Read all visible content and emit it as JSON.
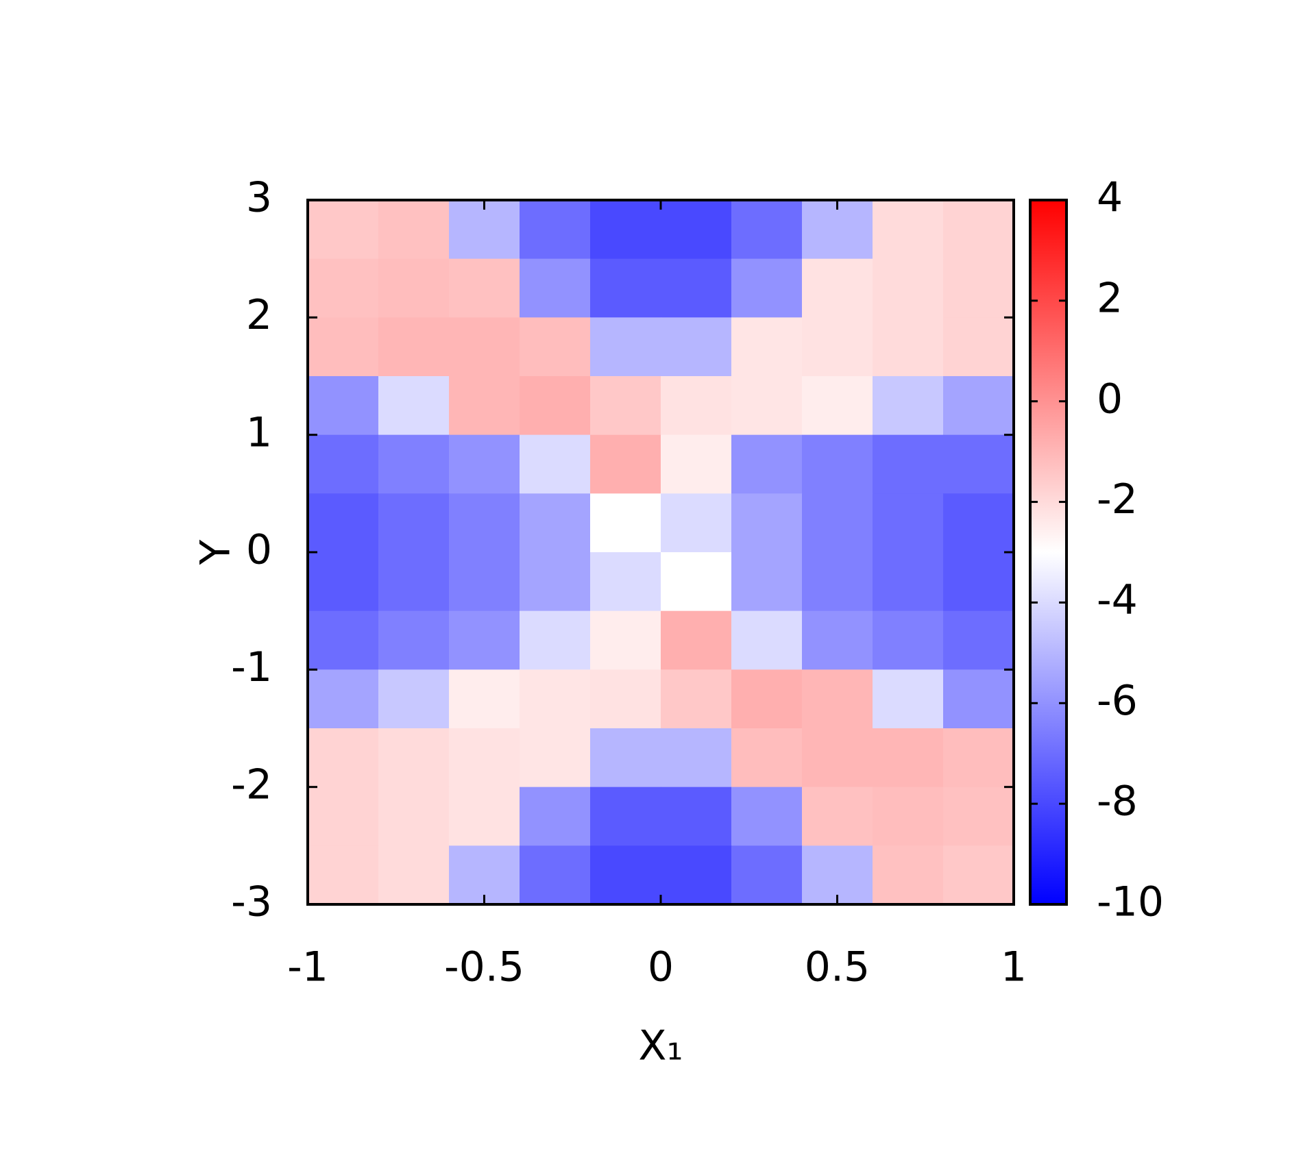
{
  "chart_data": {
    "type": "heatmap",
    "xlabel": "X₁",
    "ylabel": "Y",
    "x": [
      -0.9,
      -0.7,
      -0.5,
      -0.3,
      -0.1,
      0.1,
      0.3,
      0.5,
      0.7,
      0.9
    ],
    "y": [
      2.75,
      2.25,
      1.75,
      1.25,
      0.75,
      0.25,
      -0.25,
      -0.75,
      -1.25,
      -1.75,
      -2.25,
      -2.75
    ],
    "z": [
      [
        -1.5,
        -1.3,
        -5,
        -7,
        -8,
        -8,
        -7,
        -5,
        -2,
        -1.8
      ],
      [
        -1.3,
        -1.2,
        -1.3,
        -6,
        -7.5,
        -7.5,
        -6,
        -2.2,
        -2,
        -1.8
      ],
      [
        -1.2,
        -1,
        -1,
        -1.2,
        -5,
        -5,
        -2.3,
        -2.2,
        -2,
        -1.8
      ],
      [
        -6,
        -4,
        -1,
        -0.8,
        -1.5,
        -2.2,
        -2.3,
        -2.5,
        -4.5,
        -5.5
      ],
      [
        -7,
        -6.5,
        -6,
        -4,
        -0.8,
        -2.5,
        -6,
        -6.5,
        -7,
        -7
      ],
      [
        -7.5,
        -7,
        -6.5,
        -5.5,
        -3,
        -4,
        -5.5,
        -6.5,
        -7,
        -7.5
      ],
      [
        -7.5,
        -7,
        -6.5,
        -5.5,
        -4,
        -3,
        -5.5,
        -6.5,
        -7,
        -7.5
      ],
      [
        -7,
        -6.5,
        -6,
        -4,
        -2.5,
        -0.8,
        -4,
        -6,
        -6.5,
        -7
      ],
      [
        -5.5,
        -4.5,
        -2.5,
        -2.3,
        -2.2,
        -1.5,
        -0.8,
        -1,
        -4,
        -6
      ],
      [
        -1.8,
        -2,
        -2.2,
        -2.3,
        -5,
        -5,
        -1.2,
        -1,
        -1,
        -1.2
      ],
      [
        -1.8,
        -2,
        -2.2,
        -6,
        -7.5,
        -7.5,
        -6,
        -1.3,
        -1.2,
        -1.3
      ],
      [
        -1.8,
        -2,
        -5,
        -7,
        -8,
        -8,
        -7,
        -5,
        -1.3,
        -1.5
      ]
    ],
    "xlim": [
      -1,
      1
    ],
    "xticks": [
      -1,
      -0.5,
      0,
      0.5,
      1
    ],
    "ylim": [
      -3,
      3
    ],
    "yticks": [
      -3,
      -2,
      -1,
      0,
      1,
      2,
      3
    ],
    "zlim": [
      -10,
      4
    ],
    "zticks": [
      -10,
      -8,
      -6,
      -4,
      -2,
      0,
      2,
      4
    ],
    "colormap": [
      "#0000ff",
      "#ffffff",
      "#ff0000"
    ]
  }
}
